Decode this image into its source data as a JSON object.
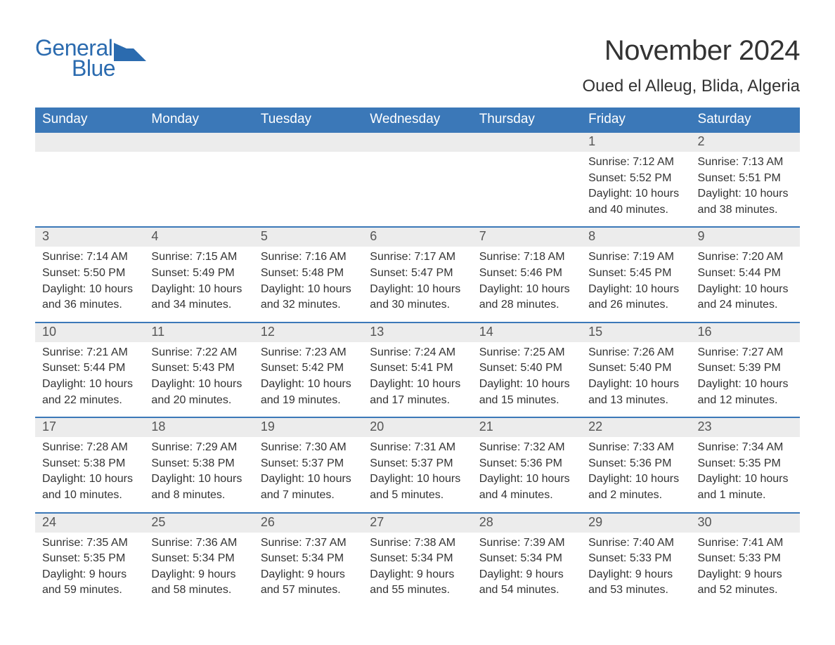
{
  "brand": {
    "word1": "General",
    "word2": "Blue",
    "color": "#2b6baf"
  },
  "title": "November 2024",
  "location": "Oued el Alleug, Blida, Algeria",
  "colors": {
    "header_bg": "#3b78b8",
    "header_fg": "#ffffff",
    "daynum_bg": "#ececec",
    "daynum_fg": "#555555",
    "body_fg": "#333333",
    "week_divider": "#3b78b8",
    "page_bg": "#ffffff"
  },
  "layout": {
    "columns": 7,
    "rows": 5
  },
  "fonts": {
    "title_size_pt": 30,
    "location_size_pt": 18,
    "header_size_pt": 14,
    "daynum_size_pt": 14,
    "body_size_pt": 12
  },
  "daysOfWeek": [
    "Sunday",
    "Monday",
    "Tuesday",
    "Wednesday",
    "Thursday",
    "Friday",
    "Saturday"
  ],
  "weeks": [
    [
      null,
      null,
      null,
      null,
      null,
      {
        "n": "1",
        "sr": "Sunrise: 7:12 AM",
        "ss": "Sunset: 5:52 PM",
        "d1": "Daylight: 10 hours",
        "d2": "and 40 minutes."
      },
      {
        "n": "2",
        "sr": "Sunrise: 7:13 AM",
        "ss": "Sunset: 5:51 PM",
        "d1": "Daylight: 10 hours",
        "d2": "and 38 minutes."
      }
    ],
    [
      {
        "n": "3",
        "sr": "Sunrise: 7:14 AM",
        "ss": "Sunset: 5:50 PM",
        "d1": "Daylight: 10 hours",
        "d2": "and 36 minutes."
      },
      {
        "n": "4",
        "sr": "Sunrise: 7:15 AM",
        "ss": "Sunset: 5:49 PM",
        "d1": "Daylight: 10 hours",
        "d2": "and 34 minutes."
      },
      {
        "n": "5",
        "sr": "Sunrise: 7:16 AM",
        "ss": "Sunset: 5:48 PM",
        "d1": "Daylight: 10 hours",
        "d2": "and 32 minutes."
      },
      {
        "n": "6",
        "sr": "Sunrise: 7:17 AM",
        "ss": "Sunset: 5:47 PM",
        "d1": "Daylight: 10 hours",
        "d2": "and 30 minutes."
      },
      {
        "n": "7",
        "sr": "Sunrise: 7:18 AM",
        "ss": "Sunset: 5:46 PM",
        "d1": "Daylight: 10 hours",
        "d2": "and 28 minutes."
      },
      {
        "n": "8",
        "sr": "Sunrise: 7:19 AM",
        "ss": "Sunset: 5:45 PM",
        "d1": "Daylight: 10 hours",
        "d2": "and 26 minutes."
      },
      {
        "n": "9",
        "sr": "Sunrise: 7:20 AM",
        "ss": "Sunset: 5:44 PM",
        "d1": "Daylight: 10 hours",
        "d2": "and 24 minutes."
      }
    ],
    [
      {
        "n": "10",
        "sr": "Sunrise: 7:21 AM",
        "ss": "Sunset: 5:44 PM",
        "d1": "Daylight: 10 hours",
        "d2": "and 22 minutes."
      },
      {
        "n": "11",
        "sr": "Sunrise: 7:22 AM",
        "ss": "Sunset: 5:43 PM",
        "d1": "Daylight: 10 hours",
        "d2": "and 20 minutes."
      },
      {
        "n": "12",
        "sr": "Sunrise: 7:23 AM",
        "ss": "Sunset: 5:42 PM",
        "d1": "Daylight: 10 hours",
        "d2": "and 19 minutes."
      },
      {
        "n": "13",
        "sr": "Sunrise: 7:24 AM",
        "ss": "Sunset: 5:41 PM",
        "d1": "Daylight: 10 hours",
        "d2": "and 17 minutes."
      },
      {
        "n": "14",
        "sr": "Sunrise: 7:25 AM",
        "ss": "Sunset: 5:40 PM",
        "d1": "Daylight: 10 hours",
        "d2": "and 15 minutes."
      },
      {
        "n": "15",
        "sr": "Sunrise: 7:26 AM",
        "ss": "Sunset: 5:40 PM",
        "d1": "Daylight: 10 hours",
        "d2": "and 13 minutes."
      },
      {
        "n": "16",
        "sr": "Sunrise: 7:27 AM",
        "ss": "Sunset: 5:39 PM",
        "d1": "Daylight: 10 hours",
        "d2": "and 12 minutes."
      }
    ],
    [
      {
        "n": "17",
        "sr": "Sunrise: 7:28 AM",
        "ss": "Sunset: 5:38 PM",
        "d1": "Daylight: 10 hours",
        "d2": "and 10 minutes."
      },
      {
        "n": "18",
        "sr": "Sunrise: 7:29 AM",
        "ss": "Sunset: 5:38 PM",
        "d1": "Daylight: 10 hours",
        "d2": "and 8 minutes."
      },
      {
        "n": "19",
        "sr": "Sunrise: 7:30 AM",
        "ss": "Sunset: 5:37 PM",
        "d1": "Daylight: 10 hours",
        "d2": "and 7 minutes."
      },
      {
        "n": "20",
        "sr": "Sunrise: 7:31 AM",
        "ss": "Sunset: 5:37 PM",
        "d1": "Daylight: 10 hours",
        "d2": "and 5 minutes."
      },
      {
        "n": "21",
        "sr": "Sunrise: 7:32 AM",
        "ss": "Sunset: 5:36 PM",
        "d1": "Daylight: 10 hours",
        "d2": "and 4 minutes."
      },
      {
        "n": "22",
        "sr": "Sunrise: 7:33 AM",
        "ss": "Sunset: 5:36 PM",
        "d1": "Daylight: 10 hours",
        "d2": "and 2 minutes."
      },
      {
        "n": "23",
        "sr": "Sunrise: 7:34 AM",
        "ss": "Sunset: 5:35 PM",
        "d1": "Daylight: 10 hours",
        "d2": "and 1 minute."
      }
    ],
    [
      {
        "n": "24",
        "sr": "Sunrise: 7:35 AM",
        "ss": "Sunset: 5:35 PM",
        "d1": "Daylight: 9 hours",
        "d2": "and 59 minutes."
      },
      {
        "n": "25",
        "sr": "Sunrise: 7:36 AM",
        "ss": "Sunset: 5:34 PM",
        "d1": "Daylight: 9 hours",
        "d2": "and 58 minutes."
      },
      {
        "n": "26",
        "sr": "Sunrise: 7:37 AM",
        "ss": "Sunset: 5:34 PM",
        "d1": "Daylight: 9 hours",
        "d2": "and 57 minutes."
      },
      {
        "n": "27",
        "sr": "Sunrise: 7:38 AM",
        "ss": "Sunset: 5:34 PM",
        "d1": "Daylight: 9 hours",
        "d2": "and 55 minutes."
      },
      {
        "n": "28",
        "sr": "Sunrise: 7:39 AM",
        "ss": "Sunset: 5:34 PM",
        "d1": "Daylight: 9 hours",
        "d2": "and 54 minutes."
      },
      {
        "n": "29",
        "sr": "Sunrise: 7:40 AM",
        "ss": "Sunset: 5:33 PM",
        "d1": "Daylight: 9 hours",
        "d2": "and 53 minutes."
      },
      {
        "n": "30",
        "sr": "Sunrise: 7:41 AM",
        "ss": "Sunset: 5:33 PM",
        "d1": "Daylight: 9 hours",
        "d2": "and 52 minutes."
      }
    ]
  ]
}
